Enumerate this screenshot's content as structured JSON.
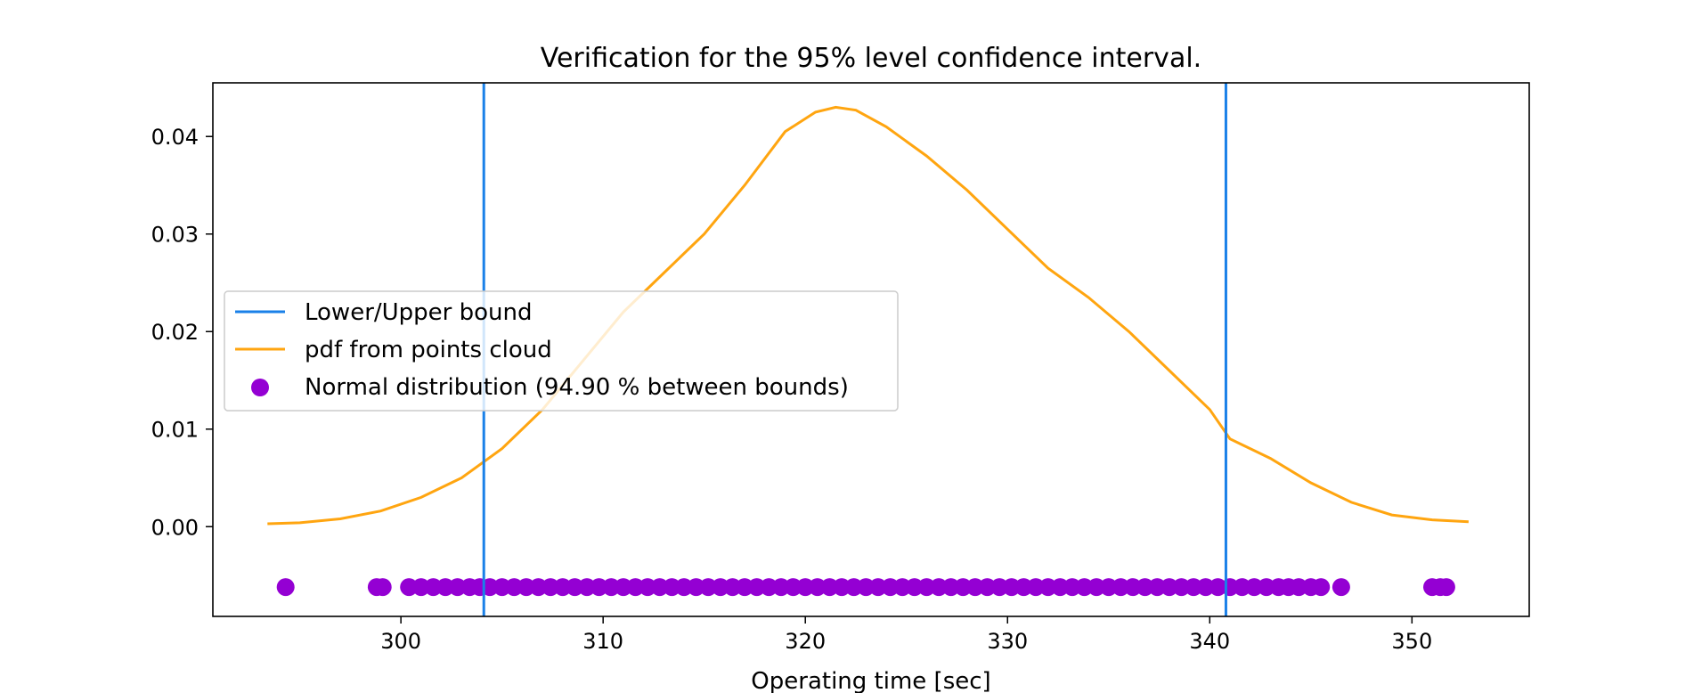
{
  "chart_data": {
    "type": "line",
    "title": "Verification for the 95% level confidence interval.",
    "xlabel": "Operating time [sec]",
    "ylabel": "",
    "xlim": [
      290.7,
      355.8
    ],
    "ylim": [
      -0.0092,
      0.0455
    ],
    "x_ticks": [
      300,
      310,
      320,
      330,
      340,
      350
    ],
    "y_ticks": [
      0.0,
      0.01,
      0.02,
      0.03,
      0.04
    ],
    "x_tick_labels": [
      "300",
      "310",
      "320",
      "330",
      "340",
      "350"
    ],
    "y_tick_labels": [
      "0.00",
      "0.01",
      "0.02",
      "0.03",
      "0.04"
    ],
    "grid": false,
    "legend_position": "center-left",
    "colors": {
      "bounds": "#1a80e8",
      "pdf": "#ffa510",
      "points": "#9400d3"
    },
    "series": [
      {
        "name": "Lower/Upper bound",
        "kind": "vline",
        "x": [
          304.1,
          340.8
        ]
      },
      {
        "name": "pdf from points cloud",
        "kind": "line",
        "x": [
          293.4,
          295,
          297,
          299,
          301,
          303,
          305,
          307,
          309,
          311,
          313,
          315,
          317,
          319,
          320.5,
          321.5,
          322.5,
          324,
          326,
          328,
          330,
          332,
          334,
          336,
          338,
          340,
          341,
          343,
          345,
          347,
          349,
          351,
          352.8
        ],
        "y": [
          0.0003,
          0.0004,
          0.0008,
          0.0016,
          0.003,
          0.005,
          0.008,
          0.012,
          0.017,
          0.022,
          0.026,
          0.03,
          0.035,
          0.0405,
          0.0425,
          0.043,
          0.0427,
          0.041,
          0.038,
          0.0345,
          0.0305,
          0.0265,
          0.0235,
          0.02,
          0.016,
          0.012,
          0.009,
          0.007,
          0.0045,
          0.0025,
          0.0012,
          0.0007,
          0.0005
        ]
      },
      {
        "name": "Normal distribution (94.90 % between bounds)",
        "kind": "scatter",
        "y_value": -0.0062,
        "x": [
          294.3,
          298.8,
          299.1,
          300.4,
          301.0,
          301.6,
          302.2,
          302.8,
          303.4,
          303.9,
          304.4,
          305.0,
          305.6,
          306.2,
          306.8,
          307.4,
          308.0,
          308.6,
          309.2,
          309.8,
          310.4,
          311.0,
          311.6,
          312.2,
          312.8,
          313.4,
          314.0,
          314.6,
          315.2,
          315.8,
          316.4,
          317.0,
          317.6,
          318.2,
          318.8,
          319.4,
          320.0,
          320.6,
          321.2,
          321.8,
          322.4,
          323.0,
          323.6,
          324.2,
          324.8,
          325.4,
          326.0,
          326.6,
          327.2,
          327.8,
          328.4,
          329.0,
          329.6,
          330.2,
          330.8,
          331.4,
          332.0,
          332.6,
          333.2,
          333.8,
          334.4,
          335.0,
          335.6,
          336.2,
          336.8,
          337.4,
          338.0,
          338.6,
          339.2,
          339.8,
          340.4,
          341.0,
          341.6,
          342.2,
          342.8,
          343.4,
          343.9,
          344.4,
          345.0,
          345.5,
          346.5,
          351.0,
          351.4,
          351.7
        ]
      }
    ]
  }
}
